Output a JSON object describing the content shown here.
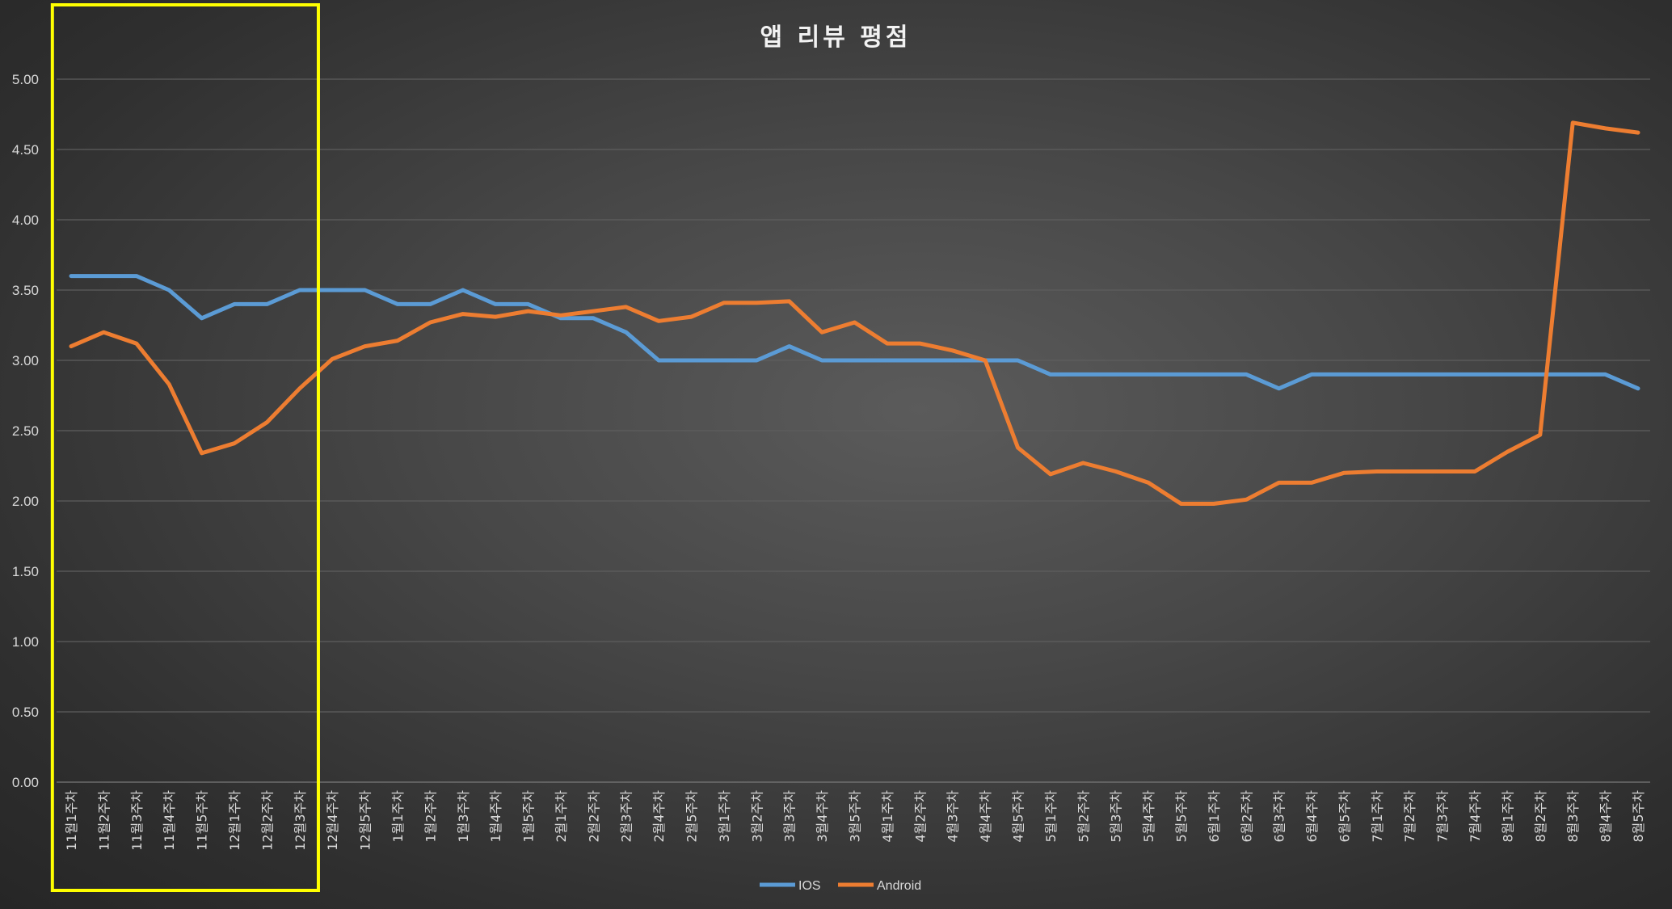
{
  "chart_data": {
    "type": "line",
    "title": "앱 리뷰 평점",
    "xlabel": "",
    "ylabel": "",
    "ylim": [
      0,
      5
    ],
    "yticks": [
      "0.00",
      "0.50",
      "1.00",
      "1.50",
      "2.00",
      "2.50",
      "3.00",
      "3.50",
      "4.00",
      "4.50",
      "5.00"
    ],
    "grid": true,
    "legend_position": "bottom",
    "categories": [
      "11월1주차",
      "11월2주차",
      "11월3주차",
      "11월4주차",
      "11월5주차",
      "12월1주차",
      "12월2주차",
      "12월3주차",
      "12월4주차",
      "12월5주차",
      "1월1주차",
      "1월2주차",
      "1월3주차",
      "1월4주차",
      "1월5주차",
      "2월1주차",
      "2월2주차",
      "2월3주차",
      "2월4주차",
      "2월5주차",
      "3월1주차",
      "3월2주차",
      "3월3주차",
      "3월4주차",
      "3월5주차",
      "4월1주차",
      "4월2주차",
      "4월3주차",
      "4월4주차",
      "4월5주차",
      "5월1주차",
      "5월2주차",
      "5월3주차",
      "5월4주차",
      "5월5주차",
      "6월1주차",
      "6월2주차",
      "6월3주차",
      "6월4주차",
      "6월5주차",
      "7월1주차",
      "7월2주차",
      "7월3주차",
      "7월4주차",
      "8월1주차",
      "8월2주차",
      "8월3주차",
      "8월4주차",
      "8월5주차"
    ],
    "series": [
      {
        "name": "IOS",
        "color": "#5b9bd5",
        "values": [
          3.6,
          3.6,
          3.6,
          3.5,
          3.3,
          3.4,
          3.4,
          3.5,
          3.5,
          3.5,
          3.4,
          3.4,
          3.5,
          3.4,
          3.4,
          3.3,
          3.3,
          3.2,
          3.0,
          3.0,
          3.0,
          3.0,
          3.1,
          3.0,
          3.0,
          3.0,
          3.0,
          3.0,
          3.0,
          3.0,
          2.9,
          2.9,
          2.9,
          2.9,
          2.9,
          2.9,
          2.9,
          2.8,
          2.9,
          2.9,
          2.9,
          2.9,
          2.9,
          2.9,
          2.9,
          2.9,
          2.9,
          2.9,
          2.8
        ]
      },
      {
        "name": "Android",
        "color": "#ed7d31",
        "values": [
          3.1,
          3.2,
          3.12,
          2.83,
          2.34,
          2.41,
          2.56,
          2.8,
          3.01,
          3.1,
          3.14,
          3.27,
          3.33,
          3.31,
          3.35,
          3.32,
          3.35,
          3.38,
          3.28,
          3.31,
          3.41,
          3.41,
          3.42,
          3.2,
          3.27,
          3.12,
          3.12,
          3.07,
          3.0,
          2.38,
          2.19,
          2.27,
          2.21,
          2.13,
          1.98,
          1.98,
          2.01,
          2.13,
          2.13,
          2.2,
          2.21,
          2.21,
          2.21,
          2.21,
          2.35,
          2.47,
          4.69,
          4.65,
          4.62
        ]
      }
    ],
    "highlight_box": {
      "from_category": "11월1주차",
      "to_category": "12월3주차",
      "color": "#ffff00"
    }
  }
}
